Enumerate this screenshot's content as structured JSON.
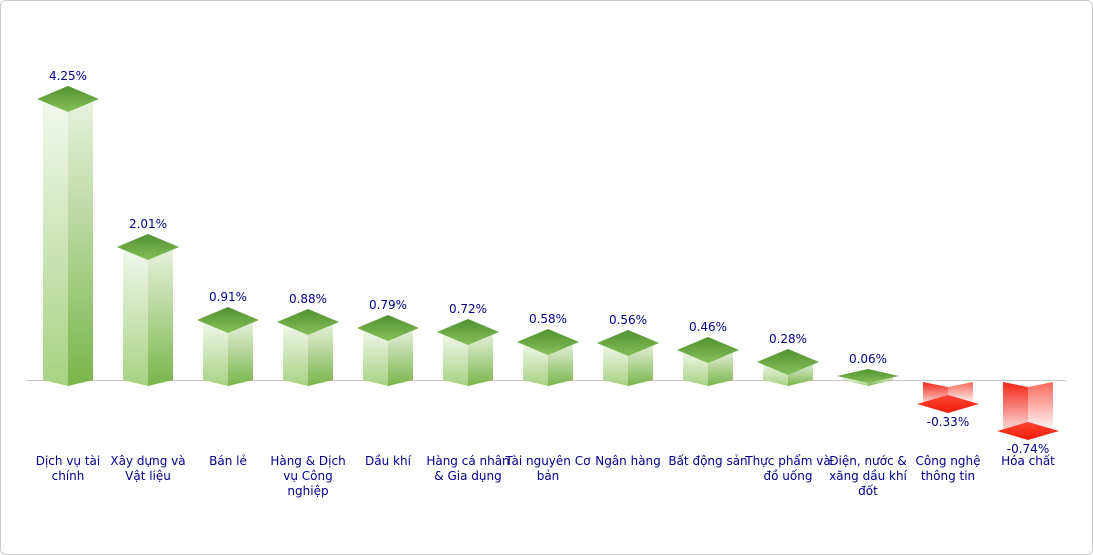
{
  "chart_data": {
    "type": "bar",
    "title": "",
    "subtitle": "",
    "xlabel": "",
    "ylabel": "",
    "unit": "%",
    "grid": false,
    "legend": false,
    "ylim": [
      -0.9,
      4.5
    ],
    "categories": [
      "Dịch vụ tài chính",
      "Xây dựng và Vật liệu",
      "Bán lẻ",
      "Hàng & Dịch vụ Công nghiệp",
      "Dầu khí",
      "Hàng cá nhân & Gia dụng",
      "Tài nguyên Cơ bản",
      "Ngân hàng",
      "Bất động sản",
      "Thực phẩm và đồ uống",
      "Điện, nước & xăng dầu khí đốt",
      "Công nghệ thông tin",
      "Hóa chất"
    ],
    "values": [
      4.25,
      2.01,
      0.91,
      0.88,
      0.79,
      0.72,
      0.58,
      0.56,
      0.46,
      0.28,
      0.06,
      -0.33,
      -0.74
    ],
    "value_labels": [
      "4.25%",
      "2.01%",
      "0.91%",
      "0.88%",
      "0.79%",
      "0.72%",
      "0.58%",
      "0.56%",
      "0.46%",
      "0.28%",
      "0.06%",
      "-0.33%",
      "-0.74%"
    ],
    "colors": {
      "label_text": "#00008b",
      "axis_line": "#c6c6c6",
      "positive_cap_top": "#4f9130",
      "positive_cap_bottom": "#87bf59",
      "positive_face_left_top": "#f3f8ee",
      "positive_face_left_bottom": "#a7d282",
      "positive_face_right_top": "#e9f2df",
      "positive_face_right_bottom": "#79b54b",
      "negative_cap_top": "#ff4534",
      "negative_cap_bottom": "#ef1d0c",
      "negative_face_left_top": "#f42516",
      "negative_face_left_bottom": "#fbdedb",
      "negative_face_right_top": "#fa6a5c",
      "negative_face_right_bottom": "#fdfbfb"
    }
  }
}
